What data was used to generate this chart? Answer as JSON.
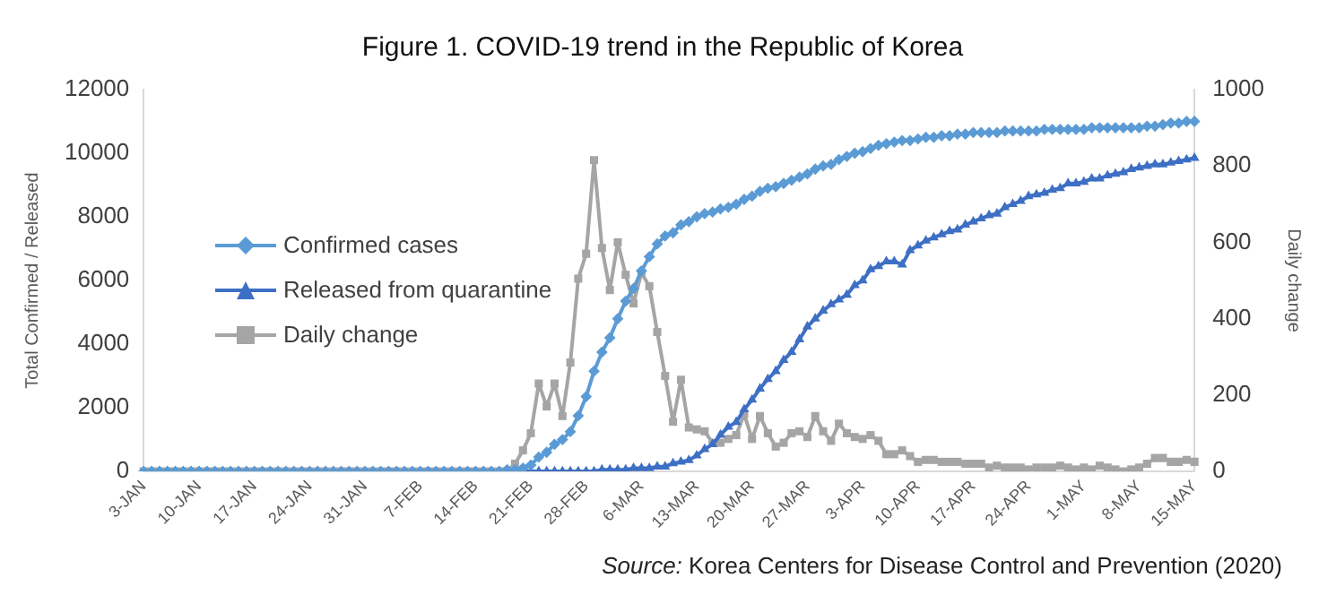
{
  "chart_data": {
    "type": "line",
    "title": "Figure 1. COVID-19 trend in the Republic of Korea",
    "ylabel": "Total Confirmed / Released",
    "y2label": "Daily change",
    "annotations": [
      "Source: Korea Centers for Disease Control and Prevention (2020)"
    ],
    "categories": [
      "3-JAN",
      null,
      null,
      null,
      null,
      null,
      null,
      "10-JAN",
      null,
      null,
      null,
      null,
      null,
      null,
      "17-JAN",
      null,
      null,
      null,
      null,
      null,
      null,
      "24-JAN",
      null,
      null,
      null,
      null,
      null,
      null,
      "31-JAN",
      null,
      null,
      null,
      null,
      null,
      null,
      "7-FEB",
      null,
      null,
      null,
      null,
      null,
      null,
      "14-FEB",
      null,
      null,
      null,
      null,
      null,
      null,
      "21-FEB",
      null,
      null,
      null,
      null,
      null,
      null,
      "28-FEB",
      null,
      null,
      null,
      null,
      null,
      null,
      "6-MAR",
      null,
      null,
      null,
      null,
      null,
      null,
      "13-MAR",
      null,
      null,
      null,
      null,
      null,
      null,
      "20-MAR",
      null,
      null,
      null,
      null,
      null,
      null,
      "27-MAR",
      null,
      null,
      null,
      null,
      null,
      null,
      "3-APR",
      null,
      null,
      null,
      null,
      null,
      null,
      "10-APR",
      null,
      null,
      null,
      null,
      null,
      null,
      "17-APR",
      null,
      null,
      null,
      null,
      null,
      null,
      "24-APR",
      null,
      null,
      null,
      null,
      null,
      null,
      "1-MAY",
      null,
      null,
      null,
      null,
      null,
      null,
      "8-MAY",
      null,
      null,
      null,
      null,
      null,
      null,
      "15-MAY"
    ],
    "series": [
      {
        "name": "Confirmed cases",
        "color": "#5b9bd5",
        "marker": "diamond",
        "values": [
          0,
          0,
          0,
          0,
          0,
          0,
          0,
          0,
          0,
          0,
          0,
          0,
          0,
          0,
          0,
          0,
          0,
          0,
          0,
          0,
          0,
          0,
          0,
          0,
          0,
          0,
          0,
          0,
          0,
          0,
          0,
          0,
          0,
          0,
          0,
          0,
          0,
          0,
          0,
          0,
          0,
          0,
          0,
          0,
          0,
          0,
          50,
          50,
          100,
          200,
          450,
          600,
          850,
          1000,
          1250,
          1750,
          2350,
          3150,
          3750,
          4200,
          4800,
          5350,
          5750,
          6300,
          6750,
          7150,
          7400,
          7500,
          7750,
          7850,
          8000,
          8100,
          8150,
          8250,
          8300,
          8400,
          8550,
          8650,
          8800,
          8900,
          8950,
          9050,
          9150,
          9250,
          9350,
          9500,
          9600,
          9650,
          9800,
          9900,
          10000,
          10050,
          10150,
          10250,
          10300,
          10350,
          10400,
          10400,
          10450,
          10500,
          10500,
          10550,
          10550,
          10600,
          10600,
          10650,
          10650,
          10650,
          10650,
          10700,
          10700,
          10700,
          10700,
          10700,
          10750,
          10750,
          10750,
          10750,
          10750,
          10750,
          10800,
          10800,
          10800,
          10800,
          10800,
          10800,
          10800,
          10850,
          10850,
          10900,
          10950,
          10950,
          11000,
          11000
        ]
      },
      {
        "name": "Released from quarantine",
        "color": "#3d6fc4",
        "marker": "triangle",
        "values": [
          0,
          0,
          0,
          0,
          0,
          0,
          0,
          0,
          0,
          0,
          0,
          0,
          0,
          0,
          0,
          0,
          0,
          0,
          0,
          0,
          0,
          0,
          0,
          0,
          0,
          0,
          0,
          0,
          0,
          0,
          0,
          0,
          0,
          0,
          0,
          0,
          0,
          0,
          0,
          0,
          0,
          0,
          0,
          0,
          0,
          0,
          0,
          0,
          0,
          0,
          0,
          0,
          0,
          0,
          0,
          0,
          0,
          0,
          50,
          50,
          50,
          50,
          100,
          100,
          100,
          150,
          150,
          250,
          300,
          350,
          500,
          700,
          850,
          1150,
          1400,
          1550,
          1950,
          2250,
          2600,
          2900,
          3150,
          3500,
          3750,
          4150,
          4550,
          4800,
          5050,
          5250,
          5400,
          5550,
          5850,
          6000,
          6350,
          6450,
          6600,
          6600,
          6500,
          6950,
          7100,
          7250,
          7350,
          7450,
          7550,
          7600,
          7750,
          7850,
          7950,
          8050,
          8100,
          8300,
          8400,
          8500,
          8650,
          8700,
          8750,
          8850,
          8900,
          9050,
          9050,
          9100,
          9200,
          9200,
          9300,
          9350,
          9400,
          9500,
          9550,
          9600,
          9650,
          9650,
          9700,
          9750,
          9800,
          9850
        ]
      },
      {
        "name": "Daily change",
        "color": "#a5a5a5",
        "marker": "square",
        "axis": "y2",
        "values": [
          0,
          0,
          0,
          0,
          0,
          0,
          0,
          0,
          0,
          0,
          0,
          0,
          0,
          0,
          0,
          0,
          0,
          0,
          0,
          0,
          0,
          0,
          0,
          0,
          0,
          0,
          0,
          0,
          0,
          0,
          0,
          0,
          0,
          0,
          0,
          0,
          0,
          0,
          0,
          0,
          0,
          0,
          0,
          0,
          0,
          0,
          0,
          20,
          55,
          100,
          230,
          170,
          230,
          145,
          285,
          505,
          570,
          815,
          585,
          475,
          600,
          515,
          440,
          520,
          485,
          365,
          250,
          130,
          240,
          115,
          110,
          105,
          75,
          75,
          85,
          95,
          150,
          85,
          145,
          100,
          65,
          75,
          100,
          105,
          90,
          145,
          105,
          80,
          125,
          100,
          90,
          85,
          95,
          80,
          45,
          45,
          55,
          40,
          25,
          30,
          30,
          25,
          25,
          25,
          20,
          20,
          20,
          10,
          15,
          10,
          10,
          10,
          5,
          10,
          10,
          10,
          15,
          10,
          5,
          10,
          5,
          15,
          10,
          5,
          0,
          5,
          10,
          20,
          35,
          35,
          25,
          25,
          30,
          25
        ]
      }
    ],
    "ylim": [
      0,
      12000
    ],
    "yticks": [
      0,
      2000,
      4000,
      6000,
      8000,
      10000,
      12000
    ],
    "y2lim": [
      0,
      1000
    ],
    "y2ticks": [
      0,
      200,
      400,
      600,
      800,
      1000
    ],
    "grid": false,
    "legend": "left",
    "line_style": "solid"
  }
}
